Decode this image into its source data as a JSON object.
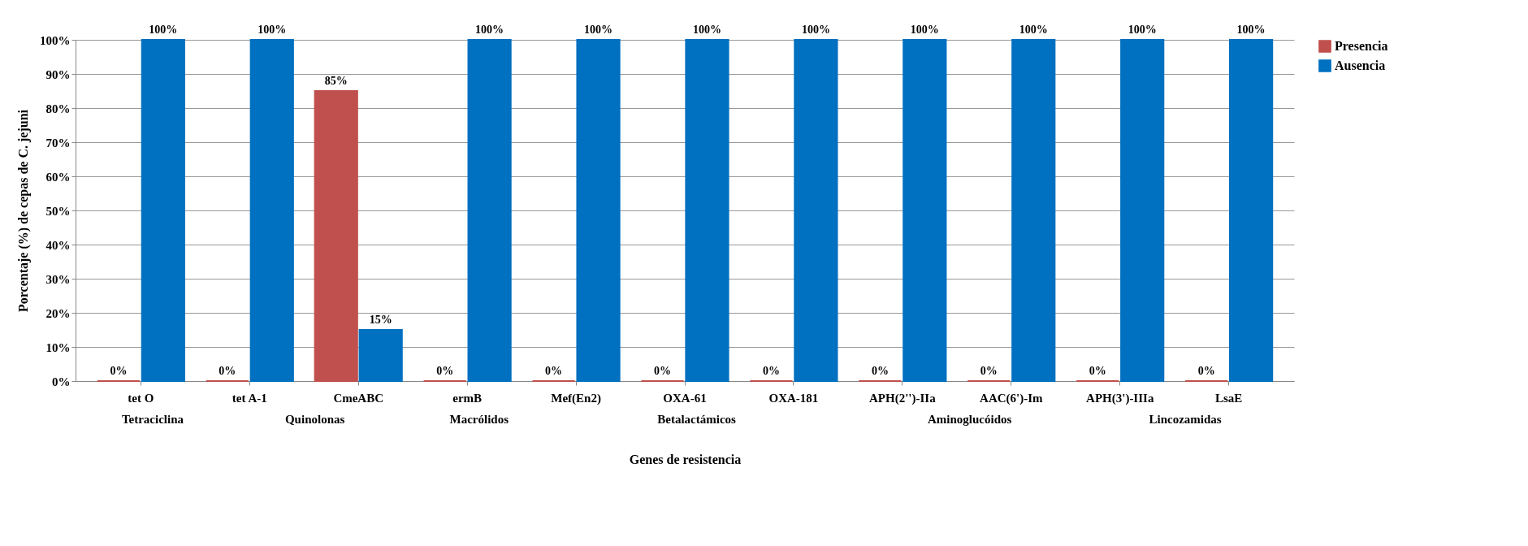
{
  "chart_data": {
    "type": "bar",
    "xlabel": "Genes de resistencia",
    "ylabel": "Porcentaje (%) de cepas de C. jejuni",
    "categories": [
      "tet O",
      "tet A-1",
      "CmeABC",
      "ermB",
      "Mef(En2)",
      "OXA-61",
      "OXA-181",
      "APH(2'')-IIa",
      "AAC(6')-Im",
      "APH(3')-IIIa",
      "LsaE"
    ],
    "series": [
      {
        "name": "Presencia",
        "color": "#c0504d",
        "values": [
          0,
          0,
          85,
          0,
          0,
          0,
          0,
          0,
          0,
          0,
          0
        ],
        "value_labels": [
          "0%",
          "0%",
          "85%",
          "0%",
          "0%",
          "0%",
          "0%",
          "0%",
          "0%",
          "0%",
          "0%"
        ]
      },
      {
        "name": "Ausencia",
        "color": "#0070c0",
        "values": [
          100,
          100,
          15,
          100,
          100,
          100,
          100,
          100,
          100,
          100,
          100
        ],
        "value_labels": [
          "100%",
          "100%",
          "15%",
          "100%",
          "100%",
          "100%",
          "100%",
          "100%",
          "100%",
          "100%",
          "100%"
        ]
      }
    ],
    "ylim": [
      0,
      100
    ],
    "yticks": [
      {
        "value": 0,
        "label": "0%"
      },
      {
        "value": 10,
        "label": "10%"
      },
      {
        "value": 20,
        "label": "20%"
      },
      {
        "value": 30,
        "label": "30%"
      },
      {
        "value": 40,
        "label": "40%"
      },
      {
        "value": 50,
        "label": "50%"
      },
      {
        "value": 60,
        "label": "60%"
      },
      {
        "value": 70,
        "label": "70%"
      },
      {
        "value": 80,
        "label": "80%"
      },
      {
        "value": 90,
        "label": "90%"
      },
      {
        "value": 100,
        "label": "100%"
      }
    ],
    "annotations": [
      "Tetraciclina",
      "Quinolonas",
      "Macrólidos",
      "Betalactámicos",
      "Aminoglucóidos",
      "Lincozamidas"
    ],
    "grid": "y",
    "legend": "right"
  }
}
